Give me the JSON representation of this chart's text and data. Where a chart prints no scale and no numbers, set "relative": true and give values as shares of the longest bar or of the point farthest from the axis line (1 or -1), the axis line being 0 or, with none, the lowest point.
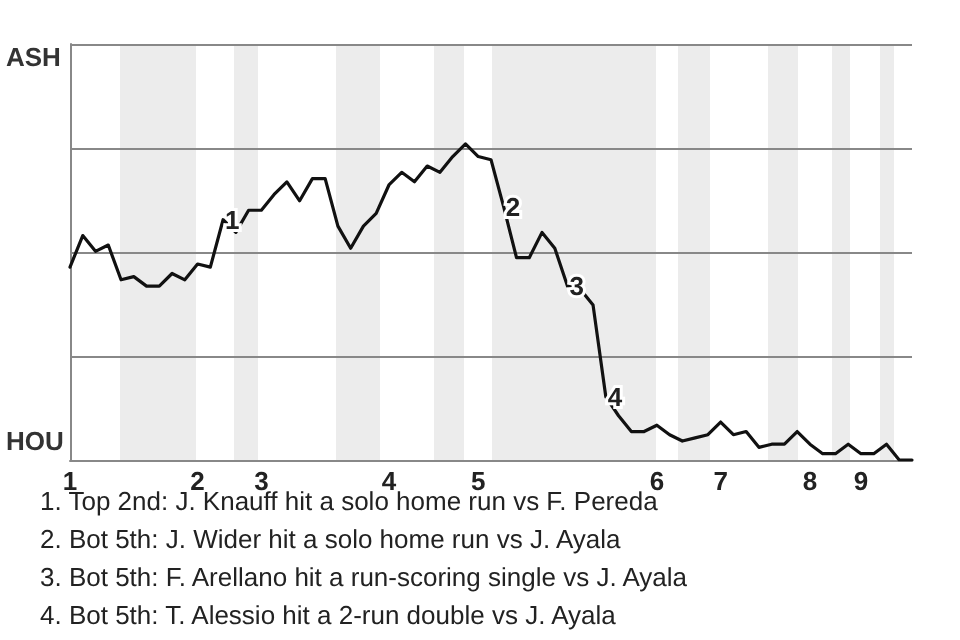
{
  "chart_data": {
    "type": "line",
    "relative": true,
    "categories": [
      "1",
      null,
      null,
      null,
      null,
      null,
      null,
      null,
      null,
      null,
      "2",
      null,
      null,
      null,
      null,
      "3",
      null,
      null,
      null,
      null,
      null,
      null,
      null,
      null,
      null,
      "4",
      null,
      null,
      null,
      null,
      null,
      null,
      "5",
      null,
      null,
      null,
      null,
      null,
      null,
      null,
      null,
      null,
      null,
      null,
      null,
      null,
      "6",
      null,
      null,
      null,
      null,
      "7",
      null,
      null,
      null,
      null,
      null,
      null,
      "8",
      null,
      null,
      null,
      "9",
      null,
      null,
      null,
      null
    ],
    "series": [
      {
        "color": "#111111",
        "values": [
          0.61,
          0.71,
          0.66,
          0.68,
          0.57,
          0.58,
          0.55,
          0.55,
          0.59,
          0.57,
          0.62,
          0.61,
          0.76,
          0.72,
          0.79,
          0.79,
          0.84,
          0.88,
          0.82,
          0.89,
          0.89,
          0.74,
          0.67,
          0.74,
          0.78,
          0.87,
          0.91,
          0.88,
          0.93,
          0.91,
          0.96,
          1,
          0.96,
          0.95,
          0.8,
          0.64,
          0.64,
          0.72,
          0.67,
          0.55,
          0.54,
          0.49,
          0.2,
          0.14,
          0.09,
          0.09,
          0.11,
          0.08,
          0.06,
          0.07,
          0.08,
          0.12,
          0.08,
          0.09,
          0.04,
          0.05,
          0.05,
          0.09,
          0.05,
          0.02,
          0.02,
          0.05,
          0.02,
          0.02,
          0.05,
          0,
          0
        ]
      }
    ],
    "grid": "y",
    "marker": "none",
    "line_style": "solid",
    "annotations": [
      "ASH",
      "HOU",
      {
        "text": "1",
        "y": 0.76
      },
      {
        "text": "2",
        "y": 0.8
      },
      {
        "text": "3",
        "y": 0.55
      },
      {
        "text": "4",
        "y": 0.2
      },
      "1. Top 2nd: J. Knauff hit a solo home run vs F. Pereda",
      "2. Bot 5th: J. Wider hit a solo home run vs J. Ayala",
      "3. Bot 5th: F. Arellano hit a run-scoring single vs J. Ayala",
      "4. Bot 5th: T. Alessio hit a 2-run double vs J. Ayala"
    ]
  }
}
